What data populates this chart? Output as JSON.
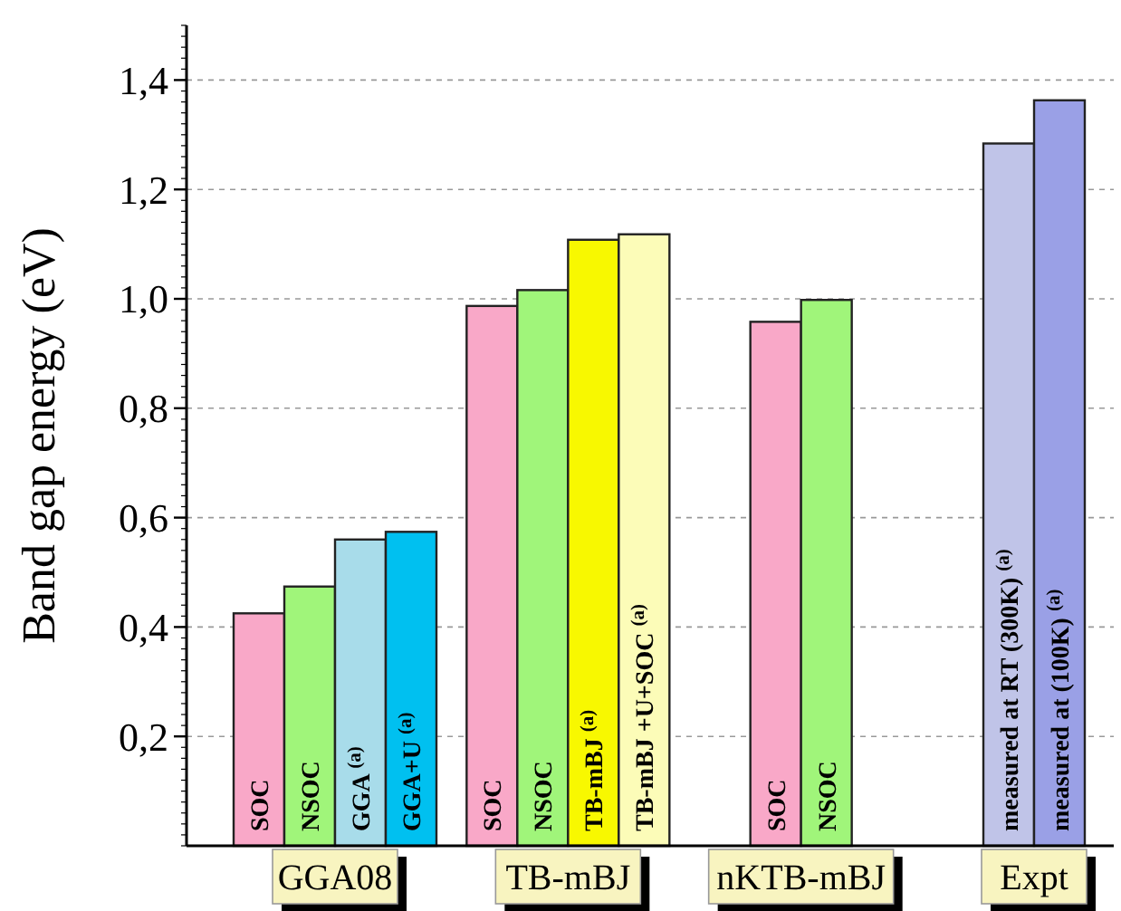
{
  "chart_data": {
    "type": "bar",
    "ylabel": "Band gap energy (eV)",
    "categories": [
      "GGA08",
      "TB-mBJ",
      "nKTB-mBJ",
      "Expt"
    ],
    "series": [
      {
        "name": "SOC",
        "color": "#f9a8c8",
        "values": [
          0.425,
          0.987,
          0.958,
          null
        ]
      },
      {
        "name": "NSOC",
        "color": "#a0f57a",
        "values": [
          0.474,
          1.016,
          0.998,
          null
        ]
      },
      {
        "name": "GGA $^{(a)}$",
        "color": "#a8dcea",
        "values": [
          0.56,
          null,
          null,
          null
        ]
      },
      {
        "name": "GGA+U $^{(a)}$",
        "color": "#00c0f0",
        "values": [
          0.574,
          null,
          null,
          null
        ]
      },
      {
        "name": "TB-mBJ $^{(a)}$",
        "color": "#f8f800",
        "values": [
          null,
          1.108,
          null,
          null
        ]
      },
      {
        "name": "TB-mBJ +U+SOC $^{(a)}$",
        "color": "#fcfcb8",
        "values": [
          null,
          1.118,
          null,
          null
        ]
      },
      {
        "name": "measured at RT (300K) $^{(a)}$",
        "color": "#c0c4e8",
        "values": [
          null,
          null,
          null,
          1.284
        ]
      },
      {
        "name": "measured at  (100K) $^{(a)}$",
        "color": "#9aa0e6",
        "values": [
          null,
          null,
          null,
          1.363
        ]
      }
    ],
    "ylim": [
      0,
      1.5
    ],
    "yticks": [
      {
        "value": 0.2,
        "label": "0,2"
      },
      {
        "value": 0.4,
        "label": "0,4"
      },
      {
        "value": 0.6,
        "label": "0,6"
      },
      {
        "value": 0.8,
        "label": "0,8"
      },
      {
        "value": 1.0,
        "label": "1,0"
      },
      {
        "value": 1.2,
        "label": "1,2"
      },
      {
        "value": 1.4,
        "label": "1,4"
      }
    ],
    "grid": "y"
  }
}
